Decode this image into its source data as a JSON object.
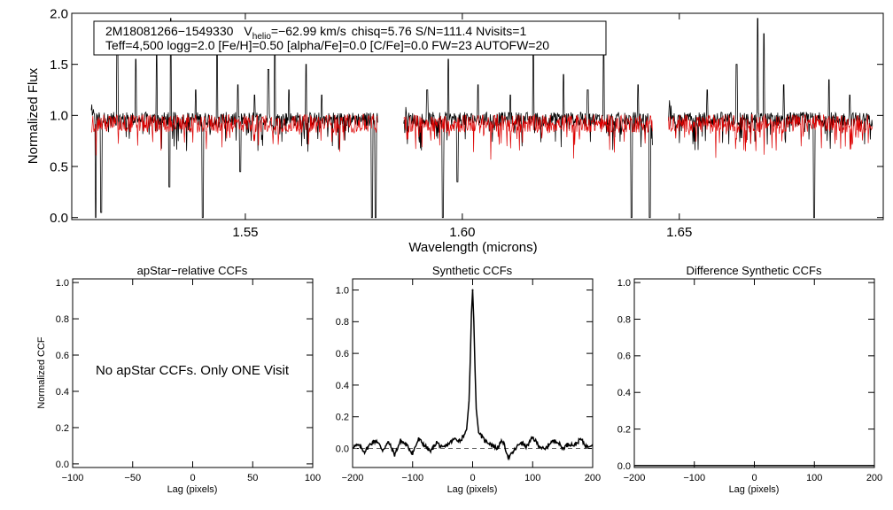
{
  "colors": {
    "axes": "#000000",
    "observed": "#000000",
    "model": "#dd0000",
    "background": "#ffffff"
  },
  "chart_data": [
    {
      "id": "spectrum",
      "type": "line",
      "xlabel": "Wavelength (microns)",
      "ylabel": "Normalized Flux",
      "xlim": [
        1.51,
        1.697
      ],
      "ylim": [
        -0.02,
        2.0
      ],
      "xticks": [
        1.55,
        1.6,
        1.65
      ],
      "xtick_labels": [
        "1.55",
        "1.60",
        "1.65"
      ],
      "yticks": [
        0.0,
        0.5,
        1.0,
        1.5,
        2.0
      ],
      "ytick_labels": [
        "0.0",
        "0.5",
        "1.0",
        "1.5",
        "2.0"
      ],
      "segments": [
        [
          1.5145,
          1.5805
        ],
        [
          1.5865,
          1.6438
        ],
        [
          1.6475,
          1.6945
        ]
      ],
      "series": [
        {
          "name": "observed",
          "color": "#000000",
          "level": 0.97,
          "noise": 0.07,
          "spikes": [
            [
              1.5205,
              1.7
            ],
            [
              1.5248,
              1.55
            ],
            [
              1.5296,
              1.62
            ],
            [
              1.5328,
              1.95
            ],
            [
              1.5386,
              1.25
            ],
            [
              1.5435,
              1.7
            ],
            [
              1.5483,
              1.3
            ],
            [
              1.5521,
              1.2
            ],
            [
              1.5553,
              1.45
            ],
            [
              1.5568,
              1.9
            ],
            [
              1.56,
              1.25
            ],
            [
              1.564,
              1.5
            ],
            [
              1.5676,
              1.2
            ],
            [
              1.5919,
              1.25
            ],
            [
              1.5968,
              1.55
            ],
            [
              1.6036,
              1.3
            ],
            [
              1.6111,
              1.2
            ],
            [
              1.6164,
              1.7
            ],
            [
              1.6233,
              1.4
            ],
            [
              1.6289,
              1.25
            ],
            [
              1.6326,
              1.75
            ],
            [
              1.6405,
              1.3
            ],
            [
              1.6564,
              1.25
            ],
            [
              1.6632,
              1.5
            ],
            [
              1.6681,
              1.95
            ],
            [
              1.6695,
              1.8
            ],
            [
              1.6741,
              1.3
            ],
            [
              1.6845,
              1.35
            ],
            [
              1.6893,
              1.2
            ]
          ],
          "dips": [
            [
              1.5155,
              0.0
            ],
            [
              1.5168,
              0.05
            ],
            [
              1.5325,
              0.3
            ],
            [
              1.5402,
              0.0
            ],
            [
              1.5488,
              0.45
            ],
            [
              1.5792,
              0.0
            ],
            [
              1.58,
              0.0
            ],
            [
              1.5955,
              0.0
            ],
            [
              1.5989,
              0.35
            ],
            [
              1.639,
              0.0
            ],
            [
              1.6432,
              0.0
            ],
            [
              1.6811,
              0.0
            ]
          ]
        },
        {
          "name": "model",
          "color": "#dd0000",
          "level": 0.93,
          "noise": 0.09
        }
      ]
    },
    {
      "id": "apstar-ccf",
      "type": "line",
      "title": "apStar−relative CCFs",
      "xlabel": "Lag (pixels)",
      "ylabel": "Normalized CCF",
      "xlim": [
        -100,
        100
      ],
      "ylim": [
        -0.02,
        1.02
      ],
      "xticks": [
        -100,
        -50,
        0,
        50,
        100
      ],
      "xtick_labels": [
        "−100",
        "−50",
        "0",
        "50",
        "100"
      ],
      "yticks": [
        0.0,
        0.2,
        0.4,
        0.6,
        0.8,
        1.0
      ],
      "ytick_labels": [
        "0.0",
        "0.2",
        "0.4",
        "0.6",
        "0.8",
        "1.0"
      ],
      "annotation": "No apStar CCFs.  Only ONE Visit",
      "series": []
    },
    {
      "id": "synthetic-ccf",
      "type": "line",
      "title": "Synthetic CCFs",
      "xlabel": "Lag (pixels)",
      "xlim": [
        -200,
        200
      ],
      "ylim": [
        -0.12,
        1.07
      ],
      "xticks": [
        -200,
        -100,
        0,
        100,
        200
      ],
      "xtick_labels": [
        "−200",
        "−100",
        "0",
        "100",
        "200"
      ],
      "yticks": [
        0.0,
        0.2,
        0.4,
        0.6,
        0.8,
        1.0
      ],
      "ytick_labels": [
        "0.0",
        "0.2",
        "0.4",
        "0.6",
        "0.8",
        "1.0"
      ],
      "baseline": 0.0,
      "series": [
        {
          "name": "ccf",
          "peak_lag": 0,
          "peak_value": 1.0,
          "lags": [
            -200,
            -190,
            -180,
            -170,
            -160,
            -150,
            -140,
            -130,
            -120,
            -110,
            -100,
            -90,
            -80,
            -70,
            -60,
            -50,
            -40,
            -30,
            -20,
            -10,
            -6,
            -4,
            -2,
            0,
            2,
            4,
            6,
            10,
            20,
            30,
            40,
            50,
            60,
            70,
            80,
            90,
            100,
            110,
            120,
            130,
            140,
            150,
            160,
            170,
            180,
            190,
            200
          ],
          "values": [
            0.01,
            0.02,
            -0.02,
            0.03,
            0.05,
            -0.01,
            0.04,
            -0.04,
            0.05,
            0.02,
            -0.03,
            0.06,
            0.02,
            -0.02,
            0.04,
            0.0,
            0.03,
            0.06,
            0.05,
            0.12,
            0.3,
            0.55,
            0.85,
            1.0,
            0.8,
            0.5,
            0.25,
            0.1,
            0.05,
            0.03,
            0.0,
            0.05,
            -0.06,
            -0.01,
            0.04,
            0.01,
            0.07,
            0.02,
            -0.01,
            0.04,
            0.05,
            0.0,
            0.03,
            0.02,
            0.06,
            0.01,
            0.03
          ]
        }
      ]
    },
    {
      "id": "difference-ccf",
      "type": "line",
      "title": "Difference Synthetic CCFs",
      "xlabel": "Lag (pixels)",
      "xlim": [
        -200,
        200
      ],
      "ylim": [
        -0.01,
        1.02
      ],
      "xticks": [
        -200,
        -100,
        0,
        100,
        200
      ],
      "xtick_labels": [
        "−200",
        "−100",
        "0",
        "100",
        "200"
      ],
      "yticks": [
        0.0,
        0.2,
        0.4,
        0.6,
        0.8,
        1.0
      ],
      "ytick_labels": [
        "0.0",
        "0.2",
        "0.4",
        "0.6",
        "0.8",
        "1.0"
      ],
      "series": [
        {
          "name": "difference",
          "lags": [
            -200,
            200
          ],
          "values": [
            0.0,
            0.0
          ]
        }
      ]
    }
  ],
  "info": {
    "star_id": "2M18081266−1549330",
    "v_sym": "V",
    "v_sub": "helio",
    "v_value": "=−62.99 km/s",
    "stats": "chisq=5.76  S/N=111.4  Nvisits=1",
    "params": "Teff=4,500 logg=2.0 [Fe/H]=0.50 [alpha/Fe]=0.0 [C/Fe]=0.0 FW=23 AUTOFW=20"
  }
}
